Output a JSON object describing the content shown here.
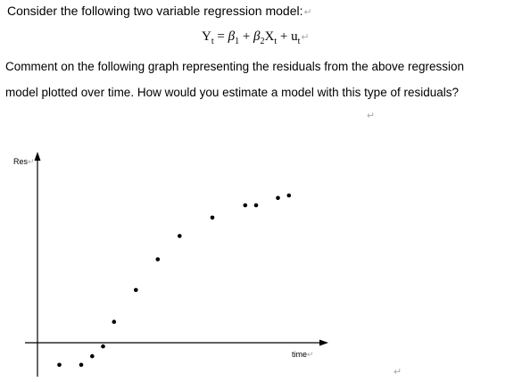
{
  "question_intro": "Consider the following two variable regression model:",
  "equation": {
    "lhs": "Y",
    "lhs_sub": "t",
    "equals": " = ",
    "beta1": "β",
    "beta1_sub": "1",
    "plus1": " + ",
    "beta2": "β",
    "beta2_sub": "2",
    "x": "X",
    "x_sub": "t",
    "plus2": " + ",
    "u": "u",
    "u_sub": "t"
  },
  "paragraph_line1": "Comment on the following graph representing the residuals from the above regression",
  "paragraph_line2": "model plotted over time. How would you estimate a model with this type of residuals?",
  "paragraph_mark": "↵",
  "chart_data": {
    "type": "scatter",
    "ylabel": "Res",
    "xlabel": "time",
    "points": [
      {
        "x": 1,
        "y": -0.9
      },
      {
        "x": 2,
        "y": -0.9
      },
      {
        "x": 2.5,
        "y": -0.55
      },
      {
        "x": 3,
        "y": -0.15
      },
      {
        "x": 3.5,
        "y": 0.85
      },
      {
        "x": 4.5,
        "y": 2.15
      },
      {
        "x": 5.5,
        "y": 3.4
      },
      {
        "x": 6.5,
        "y": 4.35
      },
      {
        "x": 8,
        "y": 5.1
      },
      {
        "x": 9.5,
        "y": 5.6
      },
      {
        "x": 10,
        "y": 5.6
      },
      {
        "x": 11,
        "y": 5.9
      },
      {
        "x": 11.5,
        "y": 6.0
      }
    ],
    "grid": false
  }
}
